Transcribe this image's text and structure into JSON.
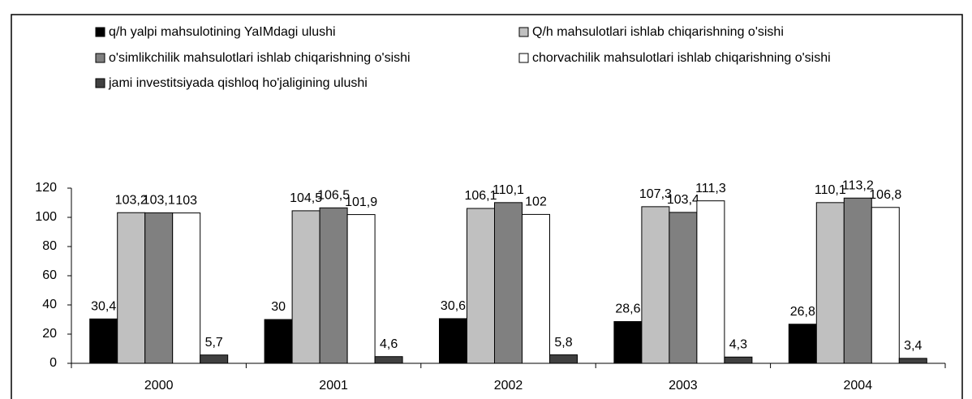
{
  "chart_data": {
    "type": "bar",
    "categories": [
      "2000",
      "2001",
      "2002",
      "2003",
      "2004"
    ],
    "series": [
      {
        "name": "q/h yalpi mahsulotining YaIMdagi ulushi",
        "color": "#000000",
        "values": [
          30.4,
          30,
          30.6,
          28.6,
          26.8
        ],
        "value_labels": [
          "30,4",
          "30",
          "30,6",
          "28,6",
          "26,8"
        ]
      },
      {
        "name": "Q/h mahsulotlari ishlab chiqarishning o'sishi",
        "color": "#c0c0c0",
        "values": [
          103.2,
          104.5,
          106.1,
          107.3,
          110.1
        ],
        "value_labels": [
          "103,2",
          "104,5",
          "106,1",
          "107,3",
          "110,1"
        ]
      },
      {
        "name": "o'simlikchilik mahsulotlari ishlab chiqarishning o'sishi",
        "color": "#808080",
        "values": [
          103.1,
          106.5,
          110.1,
          103.4,
          113.2
        ],
        "value_labels": [
          "103,1",
          "106,5",
          "110,1",
          "103,4",
          "113,2"
        ]
      },
      {
        "name": "chorvachilik mahsulotlari ishlab chiqarishning o'sishi",
        "color": "#ffffff",
        "values": [
          103,
          101.9,
          102,
          111.3,
          106.8
        ],
        "value_labels": [
          "103",
          "101,9",
          "102",
          "111,3",
          "106,8"
        ]
      },
      {
        "name": "jami investitsiyada qishloq ho'jaligining ulushi",
        "color": "#404040",
        "values": [
          5.7,
          4.6,
          5.8,
          4.3,
          3.4
        ],
        "value_labels": [
          "5,7",
          "4,6",
          "5,8",
          "4,3",
          "3,4"
        ]
      }
    ],
    "ylim": [
      0,
      120
    ],
    "yticks": [
      0,
      20,
      40,
      60,
      80,
      100,
      120
    ],
    "grid": false
  }
}
